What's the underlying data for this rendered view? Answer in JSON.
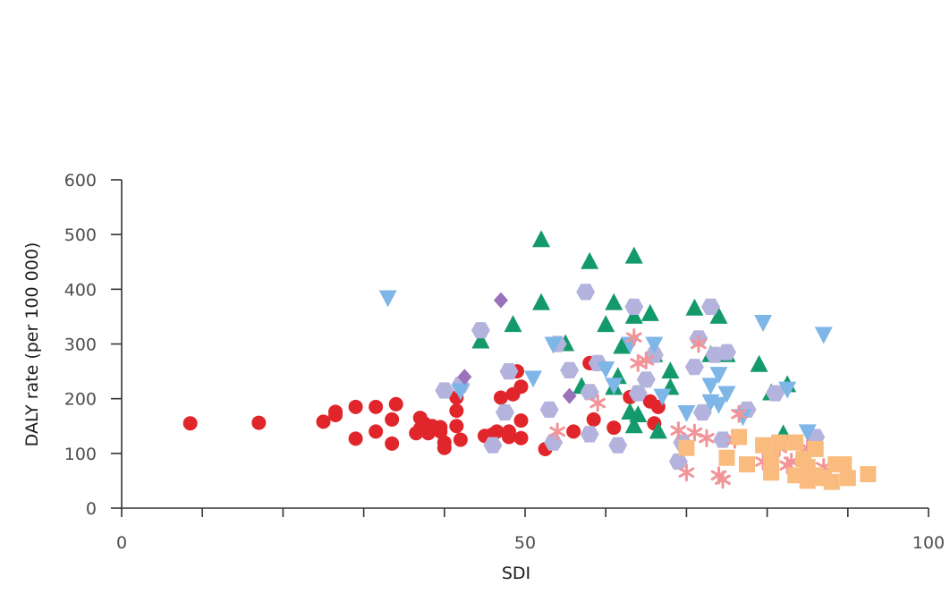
{
  "chart_data": {
    "type": "scatter",
    "title": "",
    "xlabel": "SDI",
    "ylabel": "DALY rate (per 100 000)",
    "xlim": [
      0,
      100
    ],
    "ylim": [
      0,
      600
    ],
    "x_ticks": [
      0,
      50,
      100
    ],
    "x_minor_ticks": [
      0,
      10,
      20,
      30,
      40,
      50,
      60,
      70,
      80,
      90,
      100
    ],
    "y_ticks": [
      0,
      100,
      200,
      300,
      400,
      500,
      600
    ],
    "x_tick_labels": [
      "0",
      "50",
      "100"
    ],
    "y_tick_labels": [
      "0",
      "100",
      "200",
      "300",
      "400",
      "500",
      "600"
    ],
    "grid": false,
    "legend": "none",
    "series": [
      {
        "marker": "circle",
        "color": "#e0262b",
        "points": [
          [
            8.5,
            155
          ],
          [
            17,
            156
          ],
          [
            25,
            158
          ],
          [
            26.5,
            170
          ],
          [
            26.5,
            176
          ],
          [
            29,
            185
          ],
          [
            29,
            127
          ],
          [
            31.5,
            185
          ],
          [
            31.5,
            140
          ],
          [
            33.5,
            162
          ],
          [
            33.5,
            118
          ],
          [
            34,
            190
          ],
          [
            36.5,
            137
          ],
          [
            37,
            165
          ],
          [
            37,
            145
          ],
          [
            37.5,
            155
          ],
          [
            38,
            137
          ],
          [
            38.5,
            150
          ],
          [
            39.5,
            148
          ],
          [
            39.5,
            140
          ],
          [
            40,
            120
          ],
          [
            40,
            110
          ],
          [
            41.5,
            202
          ],
          [
            41.5,
            178
          ],
          [
            41.5,
            150
          ],
          [
            42,
            125
          ],
          [
            45,
            132
          ],
          [
            46,
            135
          ],
          [
            46.5,
            140
          ],
          [
            47,
            202
          ],
          [
            48,
            140
          ],
          [
            48,
            130
          ],
          [
            48.5,
            208
          ],
          [
            49,
            250
          ],
          [
            49.5,
            222
          ],
          [
            49.5,
            160
          ],
          [
            49.5,
            128
          ],
          [
            52.5,
            108
          ],
          [
            56,
            140
          ],
          [
            58,
            265
          ],
          [
            58.5,
            162
          ],
          [
            61,
            147
          ],
          [
            63,
            203
          ],
          [
            65.5,
            195
          ],
          [
            66,
            155
          ],
          [
            66.5,
            185
          ]
        ]
      },
      {
        "marker": "triangle-up",
        "color": "#13996a",
        "points": [
          [
            44.5,
            305
          ],
          [
            48.5,
            335
          ],
          [
            52,
            490
          ],
          [
            52,
            375
          ],
          [
            55,
            300
          ],
          [
            57,
            222
          ],
          [
            58,
            450
          ],
          [
            60,
            335
          ],
          [
            61,
            375
          ],
          [
            61,
            220
          ],
          [
            61.5,
            240
          ],
          [
            62,
            295
          ],
          [
            63,
            175
          ],
          [
            63.5,
            460
          ],
          [
            63.5,
            350
          ],
          [
            63.5,
            150
          ],
          [
            64,
            170
          ],
          [
            65.5,
            355
          ],
          [
            66,
            280
          ],
          [
            66.5,
            140
          ],
          [
            68,
            250
          ],
          [
            68,
            220
          ],
          [
            71,
            365
          ],
          [
            73,
            280
          ],
          [
            74,
            350
          ],
          [
            75,
            280
          ],
          [
            79,
            262
          ],
          [
            80.5,
            210
          ],
          [
            82,
            135
          ],
          [
            82.5,
            225
          ]
        ]
      },
      {
        "marker": "hexagon",
        "color": "#b4b3de",
        "points": [
          [
            40,
            215
          ],
          [
            42,
            225
          ],
          [
            44.5,
            325
          ],
          [
            46,
            115
          ],
          [
            47.5,
            175
          ],
          [
            48,
            250
          ],
          [
            53,
            180
          ],
          [
            53.5,
            120
          ],
          [
            54,
            300
          ],
          [
            55.5,
            252
          ],
          [
            57.5,
            395
          ],
          [
            58,
            135
          ],
          [
            58,
            212
          ],
          [
            59,
            265
          ],
          [
            61.5,
            115
          ],
          [
            63.5,
            368
          ],
          [
            64,
            210
          ],
          [
            65,
            235
          ],
          [
            66,
            280
          ],
          [
            69,
            85
          ],
          [
            69.5,
            120
          ],
          [
            71,
            258
          ],
          [
            71.5,
            310
          ],
          [
            72,
            175
          ],
          [
            73,
            368
          ],
          [
            73.5,
            280
          ],
          [
            74.5,
            125
          ],
          [
            75,
            285
          ],
          [
            77.5,
            180
          ],
          [
            81,
            210
          ],
          [
            86,
            130
          ]
        ]
      },
      {
        "marker": "triangle-down",
        "color": "#7eb6e8",
        "points": [
          [
            33,
            385
          ],
          [
            42,
            215
          ],
          [
            51,
            238
          ],
          [
            53.5,
            300
          ],
          [
            60,
            255
          ],
          [
            61,
            225
          ],
          [
            63,
            300
          ],
          [
            66,
            300
          ],
          [
            67,
            205
          ],
          [
            70,
            175
          ],
          [
            73,
            225
          ],
          [
            73,
            195
          ],
          [
            74,
            245
          ],
          [
            74,
            190
          ],
          [
            75,
            210
          ],
          [
            77,
            168
          ],
          [
            79.5,
            340
          ],
          [
            82.5,
            218
          ],
          [
            85,
            140
          ],
          [
            87,
            318
          ]
        ]
      },
      {
        "marker": "asterisk",
        "color": "#f29497",
        "points": [
          [
            54,
            140
          ],
          [
            59,
            192
          ],
          [
            63.5,
            312
          ],
          [
            64,
            265
          ],
          [
            65,
            270
          ],
          [
            69,
            142
          ],
          [
            70,
            65
          ],
          [
            71,
            138
          ],
          [
            71.5,
            300
          ],
          [
            72.5,
            128
          ],
          [
            74,
            60
          ],
          [
            74.5,
            52
          ],
          [
            76,
            125
          ],
          [
            76.5,
            172
          ],
          [
            79.5,
            85
          ],
          [
            81.5,
            110
          ],
          [
            82.5,
            78
          ],
          [
            83,
            85
          ],
          [
            85,
            110
          ],
          [
            87,
            75
          ]
        ]
      },
      {
        "marker": "diamond",
        "color": "#9b71b9",
        "points": [
          [
            42.5,
            240
          ],
          [
            47,
            380
          ],
          [
            55.5,
            205
          ]
        ]
      },
      {
        "marker": "square",
        "color": "#f9bc7e",
        "points": [
          [
            70,
            110
          ],
          [
            75,
            92
          ],
          [
            76.5,
            130
          ],
          [
            77.5,
            80
          ],
          [
            79.5,
            115
          ],
          [
            80.5,
            90
          ],
          [
            80.5,
            65
          ],
          [
            81.5,
            120
          ],
          [
            83.5,
            120
          ],
          [
            83.5,
            60
          ],
          [
            84.5,
            90
          ],
          [
            85,
            75
          ],
          [
            85,
            50
          ],
          [
            86,
            108
          ],
          [
            86,
            60
          ],
          [
            87,
            55
          ],
          [
            88,
            48
          ],
          [
            88.5,
            80
          ],
          [
            89.5,
            80
          ],
          [
            90,
            55
          ],
          [
            92.5,
            62
          ]
        ]
      }
    ]
  }
}
